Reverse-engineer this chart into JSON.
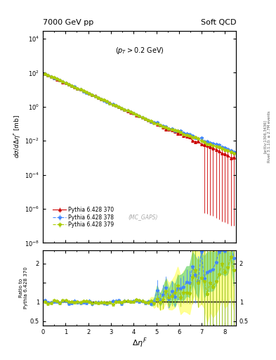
{
  "title_left": "7000 GeV pp",
  "title_right": "Soft QCD",
  "annotation": "(p_{T} > 0.2 GeV)",
  "watermark": "(MC_GAPS)",
  "ylabel_main": "dσ/dΔη^F [mb]",
  "ylabel_ratio": "Ratio to Pythia 6.428 370",
  "xlabel": "Δη^F",
  "xlim": [
    0,
    8.5
  ],
  "ylim_main": [
    1e-08,
    30000.0
  ],
  "ylim_ratio": [
    0.38,
    2.35
  ],
  "right_label1": "Rivet 3.1.10; ≥ 2.7M events",
  "right_label2": "[arXiv:1306.3436]",
  "legend": [
    {
      "label": "Pythia 6.428 370",
      "color": "#cc0000",
      "marker": "^",
      "ls": "-"
    },
    {
      "label": "Pythia 6.428 378",
      "color": "#4488ff",
      "marker": "*",
      "ls": "--"
    },
    {
      "label": "Pythia 6.428 379",
      "color": "#aacc00",
      "marker": "*",
      "ls": "--"
    }
  ],
  "bg_color": "#ffffff",
  "band_yellow": "#ffff88",
  "band_green": "#88dd88"
}
